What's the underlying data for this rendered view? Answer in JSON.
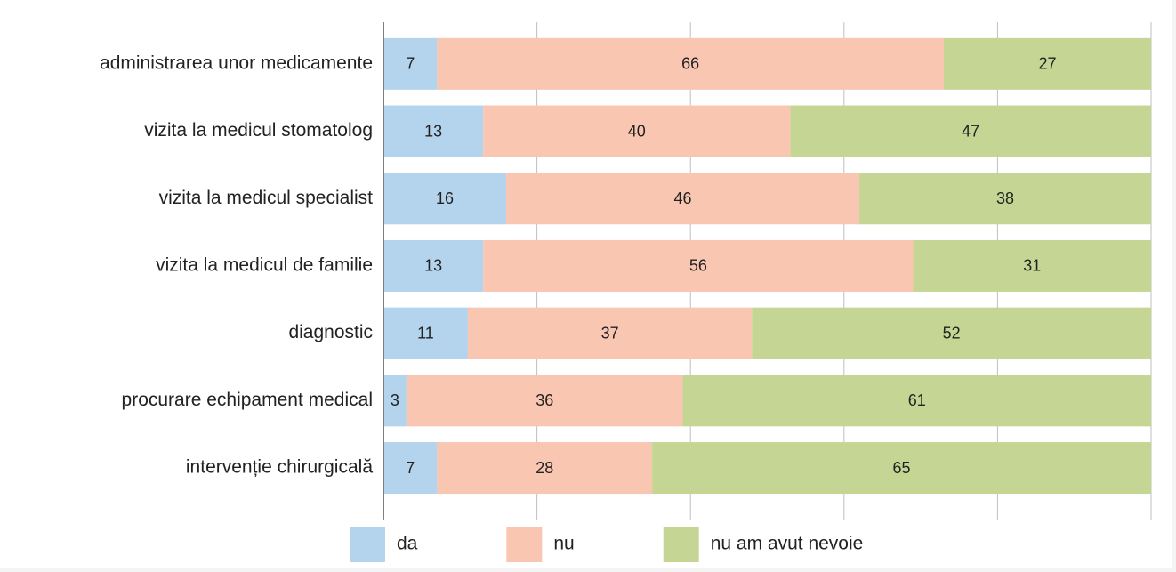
{
  "chart_data": {
    "type": "stacked_barh",
    "categories": [
      "administrarea unor medicamente",
      "vizita la medicul stomatolog",
      "vizita la medicul specialist",
      "vizita la medicul de familie",
      "diagnostic",
      "procurare echipament medical",
      "intervenție chirurgicală"
    ],
    "series": [
      {
        "name": "da",
        "color": "#b4d3ec",
        "values": [
          7,
          13,
          16,
          13,
          11,
          3,
          7
        ]
      },
      {
        "name": "nu",
        "color": "#f9c6b2",
        "values": [
          66,
          40,
          46,
          56,
          37,
          36,
          28
        ]
      },
      {
        "name": "nu am avut nevoie",
        "color": "#c5d694",
        "values": [
          27,
          47,
          38,
          31,
          52,
          61,
          65
        ]
      }
    ],
    "xlim": [
      0,
      100
    ],
    "xticks": [
      0,
      20,
      40,
      60,
      80,
      100
    ],
    "grid": true,
    "legend": "bottom"
  }
}
